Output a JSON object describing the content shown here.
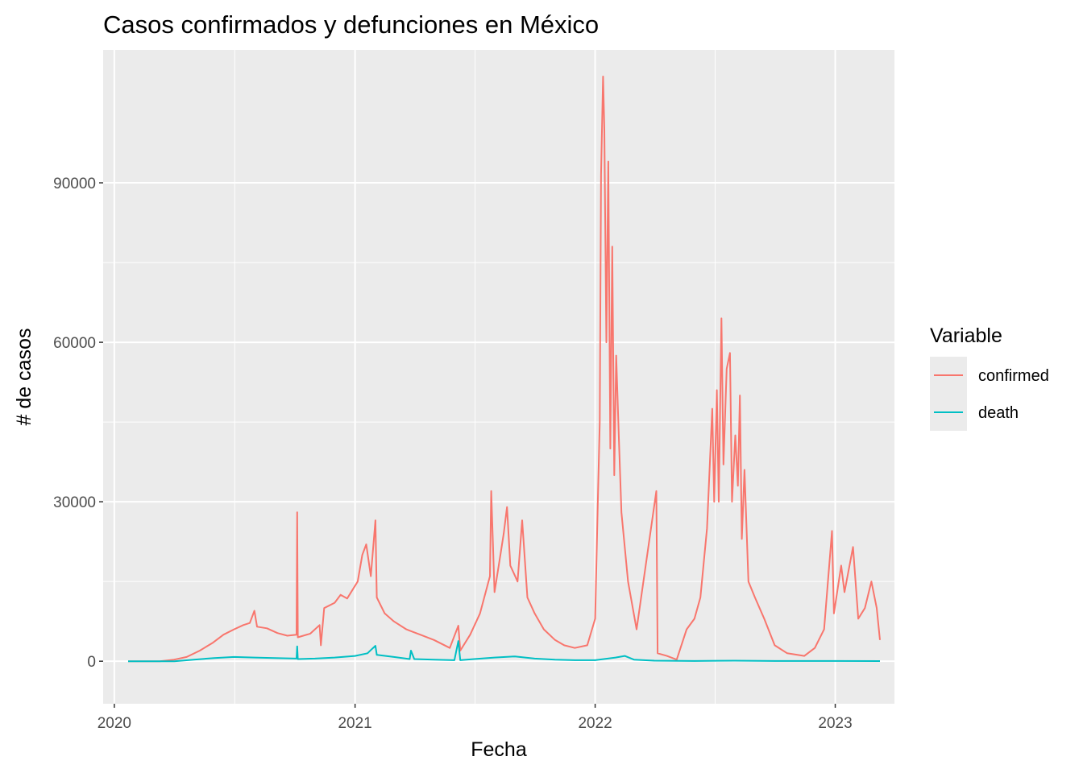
{
  "chart_data": {
    "type": "line",
    "title": "Casos confirmados y defunciones en México",
    "xlabel": "Fecha",
    "ylabel": "# de casos",
    "xlim": [
      "2019-12-15",
      "2023-04-01"
    ],
    "ylim": [
      -8000,
      115000
    ],
    "x_ticks": [
      {
        "date": "2020-01-01",
        "label": "2020"
      },
      {
        "date": "2021-01-01",
        "label": "2021"
      },
      {
        "date": "2022-01-01",
        "label": "2022"
      },
      {
        "date": "2023-01-01",
        "label": "2023"
      }
    ],
    "y_ticks": [
      {
        "value": 0,
        "label": "0"
      },
      {
        "value": 30000,
        "label": "30000"
      },
      {
        "value": 60000,
        "label": "60000"
      },
      {
        "value": 90000,
        "label": "90000"
      }
    ],
    "grid": true,
    "legend": {
      "title": "Variable",
      "position": "right"
    },
    "series": [
      {
        "name": "confirmed",
        "color": "#F8766D",
        "points": [
          [
            "2020-01-22",
            0
          ],
          [
            "2020-03-10",
            0
          ],
          [
            "2020-04-01",
            300
          ],
          [
            "2020-04-20",
            800
          ],
          [
            "2020-05-10",
            2000
          ],
          [
            "2020-05-30",
            3500
          ],
          [
            "2020-06-15",
            5000
          ],
          [
            "2020-07-01",
            6000
          ],
          [
            "2020-07-15",
            6800
          ],
          [
            "2020-07-25",
            7200
          ],
          [
            "2020-08-01",
            9500
          ],
          [
            "2020-08-05",
            6500
          ],
          [
            "2020-08-20",
            6200
          ],
          [
            "2020-09-05",
            5300
          ],
          [
            "2020-09-20",
            4800
          ],
          [
            "2020-10-04",
            5000
          ],
          [
            "2020-10-05",
            28000
          ],
          [
            "2020-10-06",
            4500
          ],
          [
            "2020-10-25",
            5200
          ],
          [
            "2020-11-08",
            6800
          ],
          [
            "2020-11-10",
            3000
          ],
          [
            "2020-11-15",
            10000
          ],
          [
            "2020-12-01",
            11000
          ],
          [
            "2020-12-10",
            12500
          ],
          [
            "2020-12-20",
            11800
          ],
          [
            "2021-01-05",
            15000
          ],
          [
            "2021-01-12",
            20000
          ],
          [
            "2021-01-18",
            22000
          ],
          [
            "2021-01-25",
            16000
          ],
          [
            "2021-02-01",
            26500
          ],
          [
            "2021-02-03",
            12000
          ],
          [
            "2021-02-15",
            9000
          ],
          [
            "2021-03-01",
            7500
          ],
          [
            "2021-03-20",
            6000
          ],
          [
            "2021-04-10",
            5000
          ],
          [
            "2021-05-01",
            4000
          ],
          [
            "2021-05-25",
            2500
          ],
          [
            "2021-06-07",
            6700
          ],
          [
            "2021-06-10",
            2000
          ],
          [
            "2021-06-25",
            5000
          ],
          [
            "2021-07-10",
            9000
          ],
          [
            "2021-07-25",
            16000
          ],
          [
            "2021-07-27",
            32000
          ],
          [
            "2021-08-01",
            13000
          ],
          [
            "2021-08-10",
            20000
          ],
          [
            "2021-08-15",
            24000
          ],
          [
            "2021-08-20",
            29000
          ],
          [
            "2021-08-25",
            18000
          ],
          [
            "2021-09-05",
            15000
          ],
          [
            "2021-09-12",
            26500
          ],
          [
            "2021-09-20",
            12000
          ],
          [
            "2021-10-01",
            9000
          ],
          [
            "2021-10-15",
            6000
          ],
          [
            "2021-11-01",
            4000
          ],
          [
            "2021-11-15",
            3000
          ],
          [
            "2021-12-01",
            2500
          ],
          [
            "2021-12-20",
            3000
          ],
          [
            "2022-01-01",
            8000
          ],
          [
            "2022-01-05",
            30000
          ],
          [
            "2022-01-08",
            45000
          ],
          [
            "2022-01-10",
            91500
          ],
          [
            "2022-01-13",
            110000
          ],
          [
            "2022-01-15",
            100000
          ],
          [
            "2022-01-18",
            60000
          ],
          [
            "2022-01-21",
            94000
          ],
          [
            "2022-01-24",
            40000
          ],
          [
            "2022-01-27",
            78000
          ],
          [
            "2022-01-30",
            35000
          ],
          [
            "2022-02-02",
            57500
          ],
          [
            "2022-02-06",
            42000
          ],
          [
            "2022-02-10",
            28000
          ],
          [
            "2022-02-20",
            15000
          ],
          [
            "2022-03-05",
            6000
          ],
          [
            "2022-04-04",
            32000
          ],
          [
            "2022-04-06",
            1500
          ],
          [
            "2022-04-20",
            1000
          ],
          [
            "2022-05-05",
            300
          ],
          [
            "2022-05-20",
            6000
          ],
          [
            "2022-06-01",
            8000
          ],
          [
            "2022-06-10",
            12000
          ],
          [
            "2022-06-20",
            25000
          ],
          [
            "2022-06-28",
            47500
          ],
          [
            "2022-07-01",
            30000
          ],
          [
            "2022-07-05",
            51000
          ],
          [
            "2022-07-08",
            30000
          ],
          [
            "2022-07-12",
            64500
          ],
          [
            "2022-07-15",
            37000
          ],
          [
            "2022-07-20",
            55000
          ],
          [
            "2022-07-25",
            58000
          ],
          [
            "2022-07-28",
            30000
          ],
          [
            "2022-08-02",
            42500
          ],
          [
            "2022-08-06",
            33000
          ],
          [
            "2022-08-09",
            50000
          ],
          [
            "2022-08-12",
            23000
          ],
          [
            "2022-08-16",
            36000
          ],
          [
            "2022-08-22",
            15000
          ],
          [
            "2022-09-01",
            12000
          ],
          [
            "2022-09-15",
            8000
          ],
          [
            "2022-10-01",
            3000
          ],
          [
            "2022-10-20",
            1500
          ],
          [
            "2022-11-15",
            1000
          ],
          [
            "2022-12-01",
            2500
          ],
          [
            "2022-12-15",
            6000
          ],
          [
            "2022-12-27",
            24500
          ],
          [
            "2022-12-30",
            9000
          ],
          [
            "2023-01-10",
            18000
          ],
          [
            "2023-01-15",
            13000
          ],
          [
            "2023-01-28",
            21500
          ],
          [
            "2023-02-05",
            8000
          ],
          [
            "2023-02-15",
            10000
          ],
          [
            "2023-02-25",
            15000
          ],
          [
            "2023-03-05",
            10000
          ],
          [
            "2023-03-10",
            4000
          ]
        ]
      },
      {
        "name": "death",
        "color": "#00BFC4",
        "points": [
          [
            "2020-01-22",
            0
          ],
          [
            "2020-04-01",
            0
          ],
          [
            "2020-05-01",
            300
          ],
          [
            "2020-06-01",
            600
          ],
          [
            "2020-07-01",
            800
          ],
          [
            "2020-08-01",
            700
          ],
          [
            "2020-09-01",
            600
          ],
          [
            "2020-10-04",
            500
          ],
          [
            "2020-10-05",
            2800
          ],
          [
            "2020-10-06",
            400
          ],
          [
            "2020-11-01",
            500
          ],
          [
            "2020-12-01",
            700
          ],
          [
            "2021-01-01",
            1000
          ],
          [
            "2021-01-20",
            1500
          ],
          [
            "2021-01-25",
            2100
          ],
          [
            "2021-02-01",
            2900
          ],
          [
            "2021-02-03",
            1200
          ],
          [
            "2021-03-01",
            800
          ],
          [
            "2021-03-25",
            400
          ],
          [
            "2021-03-27",
            2000
          ],
          [
            "2021-04-01",
            400
          ],
          [
            "2021-05-01",
            300
          ],
          [
            "2021-06-01",
            200
          ],
          [
            "2021-06-07",
            3800
          ],
          [
            "2021-06-10",
            200
          ],
          [
            "2021-07-01",
            400
          ],
          [
            "2021-08-01",
            700
          ],
          [
            "2021-09-01",
            900
          ],
          [
            "2021-10-01",
            500
          ],
          [
            "2021-11-01",
            300
          ],
          [
            "2021-12-01",
            200
          ],
          [
            "2022-01-01",
            200
          ],
          [
            "2022-02-01",
            700
          ],
          [
            "2022-02-15",
            1000
          ],
          [
            "2022-03-01",
            300
          ],
          [
            "2022-04-01",
            100
          ],
          [
            "2022-06-01",
            50
          ],
          [
            "2022-08-01",
            100
          ],
          [
            "2022-10-01",
            50
          ],
          [
            "2023-01-01",
            50
          ],
          [
            "2023-03-10",
            30
          ]
        ]
      }
    ]
  }
}
